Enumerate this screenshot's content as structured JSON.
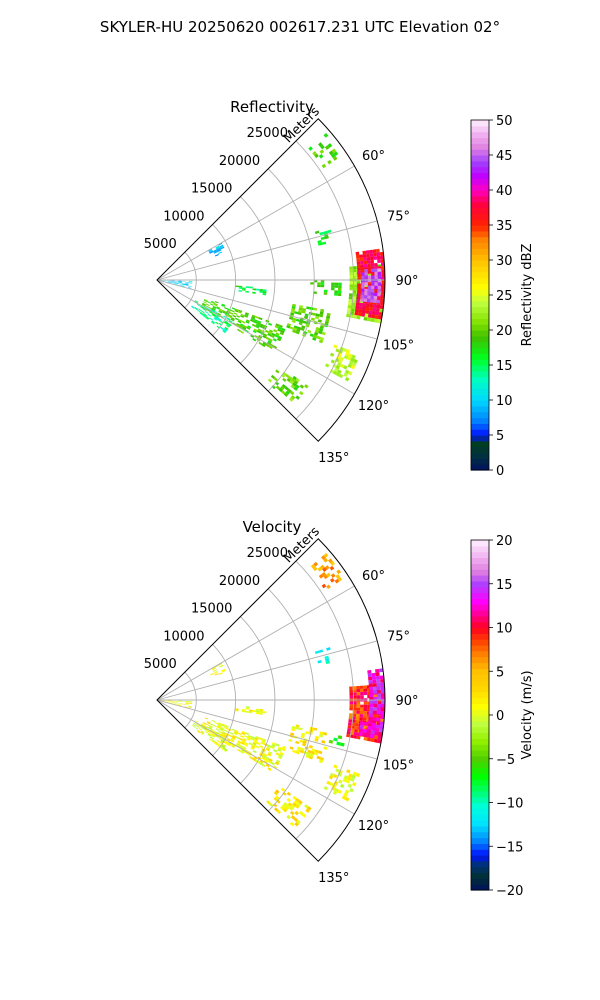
{
  "suptitle": "SKYLER-HU  20250620  002617.231 UTC Elevation 02°",
  "chart_data": [
    {
      "type": "heatmap",
      "projection": "polar-sector",
      "title": "Reflectivity",
      "range_label": "Meters",
      "theta_range_deg": [
        45,
        135
      ],
      "theta_ticks": [
        60,
        75,
        90,
        105,
        120,
        135
      ],
      "theta_tick_labels": [
        "60°",
        "75°",
        "90°",
        "105°",
        "120°",
        "135°"
      ],
      "range_max_m": 29000,
      "range_ticks": [
        5000,
        10000,
        15000,
        20000,
        25000
      ],
      "range_tick_labels": [
        "5000",
        "10000",
        "15000",
        "20000",
        "25000"
      ],
      "grid": true,
      "colorbar": {
        "label": "Reflectivity dBZ",
        "vmin": 0,
        "vmax": 50,
        "ticks": [
          0,
          5,
          10,
          15,
          20,
          25,
          30,
          35,
          40,
          45,
          50
        ],
        "tick_labels": [
          "0",
          "5",
          "10",
          "15",
          "20",
          "25",
          "30",
          "35",
          "40",
          "45",
          "50"
        ],
        "stops": [
          [
            0,
            "#001060"
          ],
          [
            2,
            "#003040"
          ],
          [
            4,
            "#004020"
          ],
          [
            5,
            "#0010ff"
          ],
          [
            7,
            "#0080ff"
          ],
          [
            10,
            "#00d8ff"
          ],
          [
            13,
            "#00ffc0"
          ],
          [
            16,
            "#00ff20"
          ],
          [
            19,
            "#40c000"
          ],
          [
            21,
            "#80e000"
          ],
          [
            24,
            "#c0ff40"
          ],
          [
            26,
            "#ffff00"
          ],
          [
            30,
            "#ffc000"
          ],
          [
            33,
            "#ff8000"
          ],
          [
            35,
            "#ff2000"
          ],
          [
            38,
            "#ff0040"
          ],
          [
            40,
            "#ff00c0"
          ],
          [
            42,
            "#c000ff"
          ],
          [
            44,
            "#a040ff"
          ],
          [
            46,
            "#e080e0"
          ],
          [
            48,
            "#f0b0f0"
          ],
          [
            50,
            "#fff0ff"
          ]
        ]
      },
      "echoes": [
        {
          "az": [
            86,
            101
          ],
          "range": [
            24500,
            29000
          ],
          "value": 22,
          "core": {
            "az": [
              82,
              100
            ],
            "range": [
              25500,
              29000
            ],
            "value": 37
          },
          "peak": {
            "az": [
              87,
              96
            ],
            "range": [
              26000,
              28500
            ],
            "value": 45
          }
        },
        {
          "az": [
            73,
            78
          ],
          "range": [
            21000,
            23000
          ],
          "value": 17
        },
        {
          "az": [
            49,
            57
          ],
          "range": [
            25500,
            28500
          ],
          "value": 19
        },
        {
          "az": [
            110,
            118
          ],
          "range": [
            24000,
            27500
          ],
          "value": 24
        },
        {
          "az": [
            100,
            111
          ],
          "range": [
            17500,
            22500
          ],
          "value": 20
        },
        {
          "az": [
            110,
            122
          ],
          "range": [
            6500,
            17500
          ],
          "value": 19
        },
        {
          "az": [
            118,
            128
          ],
          "range": [
            5500,
            11000
          ],
          "value": 14
        },
        {
          "az": [
            125,
            133
          ],
          "range": [
            19000,
            24000
          ],
          "value": 20
        },
        {
          "az": [
            60,
            68
          ],
          "range": [
            7500,
            9500
          ],
          "value": 9
        },
        {
          "az": [
            92,
            104
          ],
          "range": [
            500,
            4500
          ],
          "value": 10
        },
        {
          "az": [
            94,
            98
          ],
          "range": [
            10000,
            14000
          ],
          "value": 16
        },
        {
          "az": [
            90,
            95
          ],
          "range": [
            19500,
            23500
          ],
          "value": 18
        }
      ]
    },
    {
      "type": "heatmap",
      "projection": "polar-sector",
      "title": "Velocity",
      "range_label": "Meters",
      "theta_range_deg": [
        45,
        135
      ],
      "theta_ticks": [
        60,
        75,
        90,
        105,
        120,
        135
      ],
      "theta_tick_labels": [
        "60°",
        "75°",
        "90°",
        "105°",
        "120°",
        "135°"
      ],
      "range_max_m": 29000,
      "range_ticks": [
        5000,
        10000,
        15000,
        20000,
        25000
      ],
      "range_tick_labels": [
        "5000",
        "10000",
        "15000",
        "20000",
        "25000"
      ],
      "grid": true,
      "colorbar": {
        "label": "Velocity (m/s)",
        "vmin": -20,
        "vmax": 20,
        "ticks": [
          -20,
          -15,
          -10,
          -5,
          0,
          5,
          10,
          15,
          20
        ],
        "tick_labels": [
          "−20",
          "−15",
          "−10",
          "−5",
          "0",
          "5",
          "10",
          "15",
          "20"
        ],
        "stops": [
          [
            -20,
            "#001060"
          ],
          [
            -18.5,
            "#003030"
          ],
          [
            -17,
            "#003080"
          ],
          [
            -16,
            "#0010ff"
          ],
          [
            -14.5,
            "#0080ff"
          ],
          [
            -12.5,
            "#00e0ff"
          ],
          [
            -10.5,
            "#00ffe0"
          ],
          [
            -8.5,
            "#00ff60"
          ],
          [
            -7,
            "#00ff00"
          ],
          [
            -5,
            "#50d000"
          ],
          [
            -3,
            "#90f000"
          ],
          [
            -1,
            "#c0ff40"
          ],
          [
            1,
            "#ffff00"
          ],
          [
            3,
            "#ffd800"
          ],
          [
            5,
            "#ffc000"
          ],
          [
            7,
            "#ff8000"
          ],
          [
            8.5,
            "#ff4000"
          ],
          [
            10,
            "#ff0020"
          ],
          [
            11.5,
            "#ff0090"
          ],
          [
            13,
            "#ff00ff"
          ],
          [
            15,
            "#b040ff"
          ],
          [
            16.5,
            "#e080e0"
          ],
          [
            18,
            "#f0b0f0"
          ],
          [
            20,
            "#fff0ff"
          ]
        ]
      },
      "echoes": [
        {
          "az": [
            86,
            101
          ],
          "range": [
            24500,
            29000
          ],
          "value": 9,
          "core": {
            "az": [
              82,
              100
            ],
            "range": [
              27000,
              29000
            ],
            "value": 13
          },
          "peak": {
            "az": [
              96,
              100
            ],
            "range": [
              26000,
              28000
            ],
            "value": 13
          }
        },
        {
          "az": [
            73,
            78
          ],
          "range": [
            21000,
            23000
          ],
          "value": -11
        },
        {
          "az": [
            49,
            57
          ],
          "range": [
            25500,
            28500
          ],
          "value": 6
        },
        {
          "az": [
            110,
            118
          ],
          "range": [
            24000,
            27500
          ],
          "value": 1
        },
        {
          "az": [
            100,
            111
          ],
          "range": [
            17500,
            22500
          ],
          "value": 2
        },
        {
          "az": [
            110,
            122
          ],
          "range": [
            6500,
            17500
          ],
          "value": 1
        },
        {
          "az": [
            118,
            128
          ],
          "range": [
            5500,
            11000
          ],
          "value": 0
        },
        {
          "az": [
            125,
            133
          ],
          "range": [
            19000,
            24000
          ],
          "value": 2
        },
        {
          "az": [
            60,
            68
          ],
          "range": [
            7500,
            9500
          ],
          "value": 1
        },
        {
          "az": [
            92,
            104
          ],
          "range": [
            500,
            4500
          ],
          "value": 1
        },
        {
          "az": [
            94,
            98
          ],
          "range": [
            10000,
            14000
          ],
          "value": 1
        },
        {
          "az": [
            100,
            104
          ],
          "range": [
            22500,
            24500
          ],
          "value": -6
        }
      ]
    }
  ]
}
